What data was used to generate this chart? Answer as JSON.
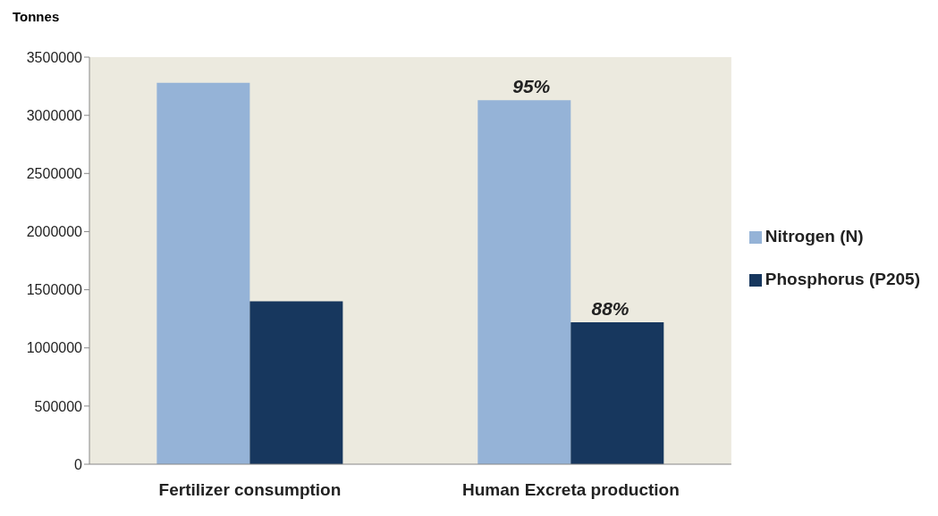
{
  "chart_data": {
    "type": "bar",
    "ylabel": "Tonnes",
    "categories": [
      "Fertilizer consumption",
      "Human Excreta production"
    ],
    "series": [
      {
        "name": "Nitrogen (N)",
        "color": "#95b3d7",
        "values": [
          3280000,
          3130000
        ]
      },
      {
        "name": "Phosphorus (P205)",
        "color": "#17375e",
        "values": [
          1400000,
          1220000
        ]
      }
    ],
    "annotations": [
      {
        "text": "95%",
        "x": "Human Excreta production",
        "y": 3130000
      },
      {
        "text": "88%",
        "x": "Human Excreta production",
        "y": 1220000
      }
    ],
    "ylim": [
      0,
      3500000
    ],
    "yticks": [
      0,
      500000,
      1000000,
      1500000,
      2000000,
      2500000,
      3000000,
      3500000
    ],
    "legend": "right",
    "grid": false
  }
}
